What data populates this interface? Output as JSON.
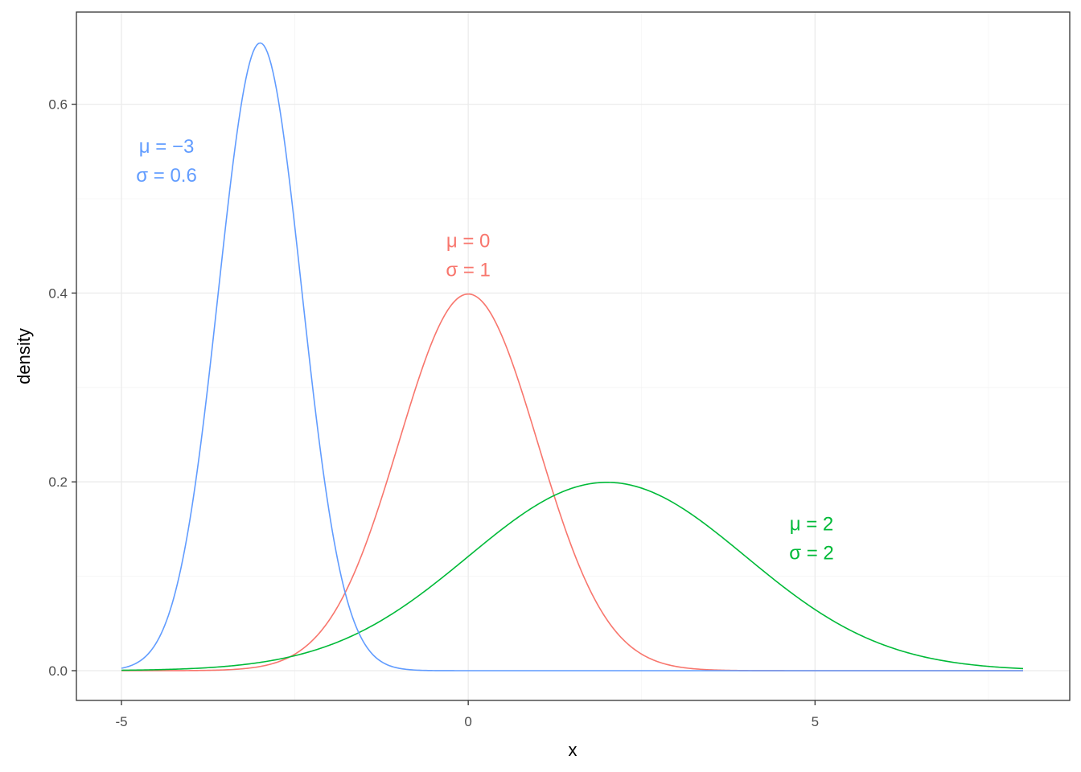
{
  "chart_data": {
    "type": "line",
    "title": "",
    "xlabel": "x",
    "ylabel": "density",
    "xlim": [
      -5,
      8
    ],
    "ylim": [
      0,
      0.665
    ],
    "x_ticks": [
      {
        "value": -5,
        "label": "-5"
      },
      {
        "value": 0,
        "label": "0"
      },
      {
        "value": 5,
        "label": "5"
      }
    ],
    "y_ticks": [
      {
        "value": 0.0,
        "label": "0.0"
      },
      {
        "value": 0.2,
        "label": "0.2"
      },
      {
        "value": 0.4,
        "label": "0.4"
      },
      {
        "value": 0.6,
        "label": "0.6"
      }
    ],
    "grid": true,
    "legend": "none",
    "series": [
      {
        "mean": 0,
        "sd": 1,
        "color": "#f8766d",
        "annotation": {
          "line1": "μ = 0",
          "line2": "σ = 1",
          "x": 0,
          "y": 0.44
        }
      },
      {
        "mean": 2,
        "sd": 2,
        "color": "#00ba38",
        "annotation": {
          "line1": "μ = 2",
          "line2": "σ = 2",
          "x": 4.95,
          "y": 0.14
        }
      },
      {
        "mean": -3,
        "sd": 0.6,
        "color": "#619cff",
        "annotation": {
          "line1": "μ = −3",
          "line2": "σ = 0.6",
          "x": -4.35,
          "y": 0.54
        }
      }
    ]
  }
}
